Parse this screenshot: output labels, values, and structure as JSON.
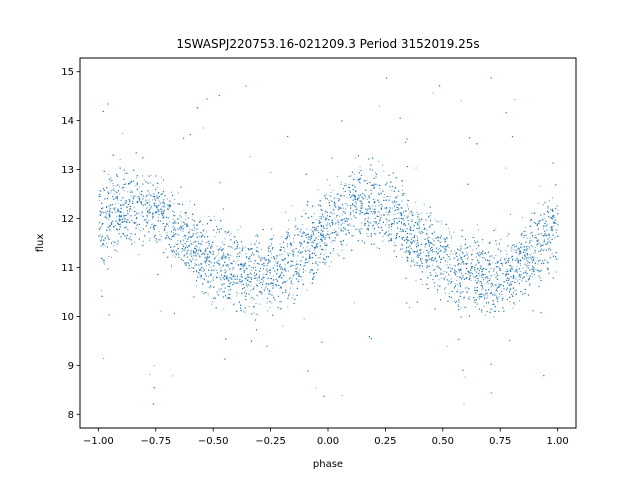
{
  "chart_data": {
    "type": "scatter",
    "title": "1SWASPJ220753.16-021209.3 Period 3152019.25s",
    "xlabel": "phase",
    "ylabel": "flux",
    "xlim": [
      -1.08,
      1.08
    ],
    "ylim": [
      7.72,
      15.28
    ],
    "x_ticks": [
      -1.0,
      -0.75,
      -0.5,
      -0.25,
      0.0,
      0.25,
      0.5,
      0.75,
      1.0
    ],
    "x_tick_labels": [
      "−1.00",
      "−0.75",
      "−0.50",
      "−0.25",
      "0.00",
      "0.25",
      "0.50",
      "0.75",
      "1.00"
    ],
    "y_ticks": [
      8,
      9,
      10,
      11,
      12,
      13,
      14,
      15
    ],
    "y_tick_labels": [
      "8",
      "9",
      "10",
      "11",
      "12",
      "13",
      "14",
      "15"
    ],
    "grid": false,
    "legend": "none",
    "marker_color": "#1f77b4",
    "series": [
      {
        "phase": [
          -1.0,
          -0.9,
          -0.8,
          -0.7,
          -0.6,
          -0.5,
          -0.4,
          -0.3,
          -0.2,
          -0.1,
          0.0,
          0.1,
          0.2,
          0.3,
          0.4,
          0.5,
          0.6,
          0.7,
          0.8,
          0.9,
          1.0
        ],
        "flux_center": [
          11.9,
          12.2,
          12.3,
          12.0,
          11.5,
          11.1,
          10.9,
          10.8,
          11.0,
          11.4,
          11.9,
          12.2,
          12.3,
          12.0,
          11.5,
          11.1,
          10.9,
          10.8,
          11.0,
          11.4,
          11.9
        ],
        "flux_spread": 0.55
      }
    ]
  }
}
